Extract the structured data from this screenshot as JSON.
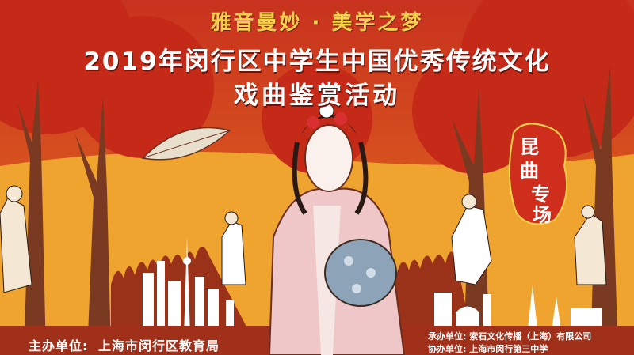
{
  "slogan": "雅音曼妙 · 美学之梦",
  "title_line1": "2019年闵行区中学生中国优秀传统文化",
  "title_line2": "戏曲鉴赏活动",
  "badge": {
    "char1": "昆",
    "char2": "曲",
    "char3": "专",
    "char4": "场"
  },
  "organizer": {
    "label": "主办单位:",
    "value": "上海市闵行区教育局"
  },
  "undertaker": {
    "label": "承办单位:",
    "value": "索石文化传播（上海）有限公司"
  },
  "co_organizer": {
    "label": "协办单位:",
    "value": "上海市闵行第三中学"
  },
  "colors": {
    "red": "#c8321e",
    "orange": "#e9952a",
    "yellow": "#f6d24a",
    "brown": "#6b2e1f"
  }
}
